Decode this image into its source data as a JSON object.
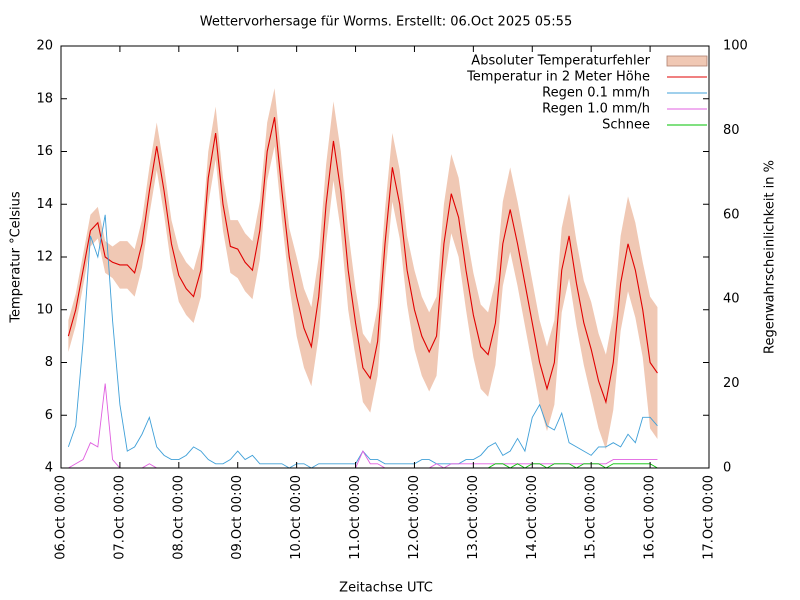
{
  "chart_data": {
    "type": "line",
    "title": "Wettervorhersage für Worms. Erstellt: 06.Oct 2025 05:55",
    "x_label": "Zeitachse UTC",
    "y_label": "Temperatur °Celsius",
    "y2_label": "Regenwahrscheinlichkeit in %",
    "xlim": [
      "06.Oct 00:00",
      "17.Oct 00:00"
    ],
    "xticks": [
      "06.Oct 00:00",
      "07.Oct 00:00",
      "08.Oct 00:00",
      "09.Oct 00:00",
      "10.Oct 00:00",
      "11.Oct 00:00",
      "12.Oct 00:00",
      "13.Oct 00:00",
      "14.Oct 00:00",
      "15.Oct 00:00",
      "16.Oct 00:00",
      "17.Oct 00:00"
    ],
    "ylim": [
      4,
      20
    ],
    "yticks": [
      4,
      6,
      8,
      10,
      12,
      14,
      16,
      18,
      20
    ],
    "y2lim": [
      0,
      100
    ],
    "y2ticks": [
      0,
      20,
      40,
      60,
      80,
      100
    ],
    "legend": "upper right",
    "x": [
      "06.Oct 03:00",
      "06.Oct 06:00",
      "06.Oct 09:00",
      "06.Oct 12:00",
      "06.Oct 15:00",
      "06.Oct 18:00",
      "06.Oct 21:00",
      "07.Oct 00:00",
      "07.Oct 03:00",
      "07.Oct 06:00",
      "07.Oct 09:00",
      "07.Oct 12:00",
      "07.Oct 15:00",
      "07.Oct 18:00",
      "07.Oct 21:00",
      "08.Oct 00:00",
      "08.Oct 03:00",
      "08.Oct 06:00",
      "08.Oct 09:00",
      "08.Oct 12:00",
      "08.Oct 15:00",
      "08.Oct 18:00",
      "08.Oct 21:00",
      "09.Oct 00:00",
      "09.Oct 03:00",
      "09.Oct 06:00",
      "09.Oct 09:00",
      "09.Oct 12:00",
      "09.Oct 15:00",
      "09.Oct 18:00",
      "09.Oct 21:00",
      "10.Oct 00:00",
      "10.Oct 03:00",
      "10.Oct 06:00",
      "10.Oct 09:00",
      "10.Oct 12:00",
      "10.Oct 15:00",
      "10.Oct 18:00",
      "10.Oct 21:00",
      "11.Oct 00:00",
      "11.Oct 03:00",
      "11.Oct 06:00",
      "11.Oct 09:00",
      "11.Oct 12:00",
      "11.Oct 15:00",
      "11.Oct 18:00",
      "11.Oct 21:00",
      "12.Oct 00:00",
      "12.Oct 03:00",
      "12.Oct 06:00",
      "12.Oct 09:00",
      "12.Oct 12:00",
      "12.Oct 15:00",
      "12.Oct 18:00",
      "12.Oct 21:00",
      "13.Oct 00:00",
      "13.Oct 03:00",
      "13.Oct 06:00",
      "13.Oct 09:00",
      "13.Oct 12:00",
      "13.Oct 15:00",
      "13.Oct 18:00",
      "13.Oct 21:00",
      "14.Oct 00:00",
      "14.Oct 03:00",
      "14.Oct 06:00",
      "14.Oct 09:00",
      "14.Oct 12:00",
      "14.Oct 15:00",
      "14.Oct 18:00",
      "14.Oct 21:00",
      "15.Oct 00:00",
      "15.Oct 03:00",
      "15.Oct 06:00",
      "15.Oct 09:00",
      "15.Oct 12:00",
      "15.Oct 15:00",
      "15.Oct 18:00",
      "15.Oct 21:00",
      "16.Oct 00:00",
      "16.Oct 03:00"
    ],
    "series": [
      {
        "name": "Absoluter Temperaturfehler",
        "type": "band",
        "color": "#f0c8b4",
        "error": [
          0.6,
          0.6,
          0.6,
          0.6,
          0.6,
          0.6,
          0.6,
          0.9,
          0.9,
          0.9,
          0.9,
          0.9,
          0.9,
          0.9,
          0.9,
          1.0,
          1.0,
          1.0,
          1.0,
          1.0,
          1.0,
          1.0,
          1.0,
          1.1,
          1.1,
          1.1,
          1.1,
          1.1,
          1.1,
          1.1,
          1.1,
          1.5,
          1.5,
          1.5,
          1.5,
          1.5,
          1.5,
          1.5,
          1.5,
          1.3,
          1.3,
          1.3,
          1.3,
          1.3,
          1.3,
          1.3,
          1.3,
          1.5,
          1.5,
          1.5,
          1.5,
          1.5,
          1.5,
          1.5,
          1.5,
          1.6,
          1.6,
          1.6,
          1.6,
          1.6,
          1.6,
          1.6,
          1.6,
          1.6,
          1.6,
          1.6,
          1.6,
          1.6,
          1.6,
          1.6,
          1.6,
          1.8,
          1.8,
          1.8,
          1.8,
          1.8,
          1.8,
          1.8,
          1.8,
          2.5,
          2.5
        ]
      },
      {
        "name": "Temperatur in 2 Meter Höhe",
        "type": "line",
        "color": "#e00000",
        "values": [
          9.0,
          10.0,
          11.5,
          13.0,
          13.3,
          12.0,
          11.8,
          11.7,
          11.7,
          11.4,
          12.5,
          14.5,
          16.2,
          14.5,
          12.5,
          11.3,
          10.8,
          10.5,
          11.5,
          15.0,
          16.7,
          14.0,
          12.4,
          12.3,
          11.8,
          11.5,
          13.0,
          16.0,
          17.3,
          14.5,
          12.0,
          10.5,
          9.3,
          8.6,
          10.5,
          14.0,
          16.4,
          14.5,
          11.5,
          9.5,
          7.8,
          7.4,
          8.8,
          12.5,
          15.4,
          14.0,
          11.5,
          10.0,
          9.0,
          8.4,
          9.0,
          12.5,
          14.4,
          13.5,
          11.5,
          9.8,
          8.6,
          8.3,
          9.5,
          12.5,
          13.8,
          12.5,
          11.0,
          9.5,
          8.0,
          7.0,
          8.0,
          11.5,
          12.8,
          11.0,
          9.5,
          8.5,
          7.3,
          6.5,
          8.0,
          11.0,
          12.5,
          11.5,
          10.0,
          8.0,
          7.6
        ]
      },
      {
        "name": "Regen 0.1 mm/h",
        "type": "line",
        "axis": "y2",
        "color": "#40a0d8",
        "values": [
          5,
          10,
          30,
          55,
          50,
          60,
          35,
          15,
          4,
          5,
          8,
          12,
          5,
          3,
          2,
          2,
          3,
          5,
          4,
          2,
          1,
          1,
          2,
          4,
          2,
          3,
          1,
          1,
          1,
          1,
          0,
          1,
          1,
          0,
          1,
          1,
          1,
          1,
          1,
          1,
          4,
          2,
          2,
          1,
          1,
          1,
          1,
          1,
          2,
          2,
          1,
          1,
          1,
          1,
          2,
          2,
          3,
          5,
          6,
          3,
          4,
          7,
          4,
          12,
          15,
          10,
          9,
          13,
          6,
          5,
          4,
          3,
          5,
          5,
          6,
          5,
          8,
          6,
          12,
          12,
          10
        ]
      },
      {
        "name": "Regen 1.0 mm/h",
        "type": "line",
        "axis": "y2",
        "color": "#e060e0",
        "values": [
          0,
          1,
          2,
          6,
          5,
          20,
          2,
          0,
          0,
          0,
          0,
          1,
          0,
          0,
          0,
          0,
          0,
          0,
          0,
          0,
          0,
          0,
          0,
          0,
          0,
          0,
          0,
          0,
          0,
          0,
          0,
          0,
          0,
          0,
          0,
          0,
          0,
          0,
          0,
          0,
          4,
          1,
          1,
          0,
          0,
          0,
          0,
          0,
          0,
          0,
          1,
          0,
          1,
          1,
          1,
          1,
          1,
          1,
          1,
          1,
          1,
          1,
          1,
          1,
          1,
          1,
          1,
          1,
          1,
          1,
          1,
          1,
          1,
          1,
          2,
          2,
          2,
          2,
          2,
          2,
          2
        ]
      },
      {
        "name": "Schnee",
        "type": "line",
        "axis": "y2",
        "color": "#00c000",
        "values": [
          0,
          0,
          0,
          0,
          0,
          0,
          0,
          0,
          0,
          0,
          0,
          0,
          0,
          0,
          0,
          0,
          0,
          0,
          0,
          0,
          0,
          0,
          0,
          0,
          0,
          0,
          0,
          0,
          0,
          0,
          0,
          0,
          0,
          0,
          0,
          0,
          0,
          0,
          0,
          0,
          0,
          0,
          0,
          0,
          0,
          0,
          0,
          0,
          0,
          0,
          0,
          0,
          0,
          0,
          0,
          0,
          0,
          0,
          1,
          1,
          0,
          1,
          0,
          1,
          1,
          0,
          1,
          1,
          1,
          0,
          1,
          1,
          1,
          0,
          1,
          1,
          1,
          1,
          1,
          1,
          0
        ]
      }
    ]
  }
}
